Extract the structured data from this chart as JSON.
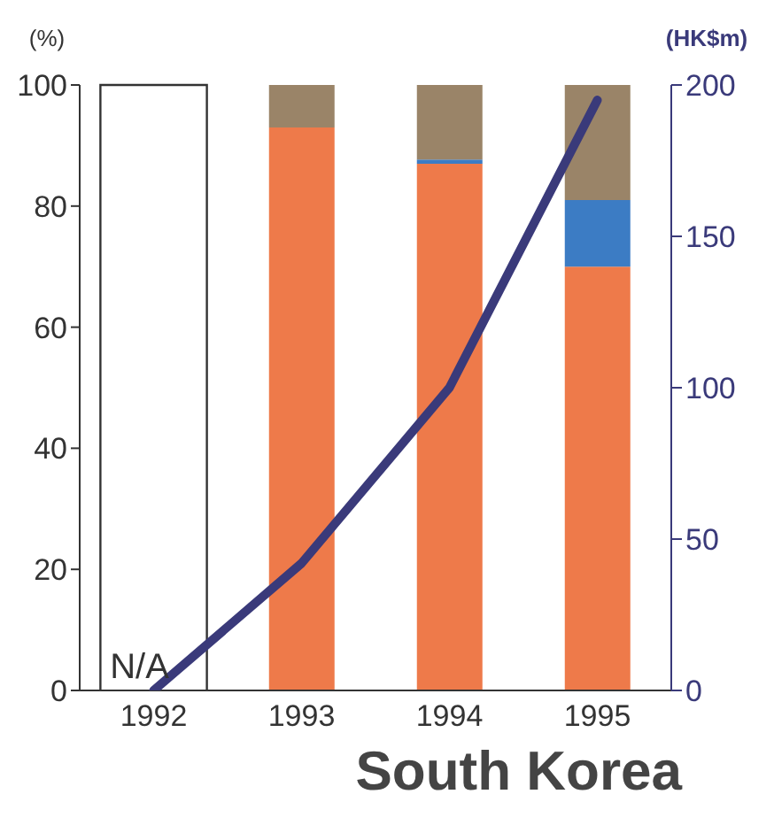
{
  "chart_data": {
    "type": "bar",
    "stacked": true,
    "title": "South Korea",
    "ylabel": "(%)",
    "y2label": "(HK$m)",
    "categories": [
      "1992",
      "1993",
      "1994",
      "1995"
    ],
    "series": [
      {
        "color": "#ee7a4a",
        "values": [
          null,
          93,
          87,
          70
        ]
      },
      {
        "color": "#3c7cc4",
        "values": [
          null,
          0,
          0.7,
          11
        ]
      },
      {
        "color": "#9a8468",
        "values": [
          null,
          7,
          12.3,
          19
        ]
      },
      {
        "type": "line",
        "axis": "y2",
        "color": "#3a3a7a",
        "values": [
          0,
          42,
          100,
          195
        ]
      }
    ],
    "ylim": [
      0,
      100
    ],
    "yticks": [
      0,
      20,
      40,
      60,
      80,
      100
    ],
    "y2lim": [
      0,
      200
    ],
    "y2ticks": [
      0,
      50,
      100,
      150,
      200
    ],
    "annotations": [
      {
        "text": "N/A",
        "x": "1992",
        "y": 0
      }
    ],
    "grid": false,
    "legend": false,
    "marker": "none",
    "line_style": "solid"
  }
}
